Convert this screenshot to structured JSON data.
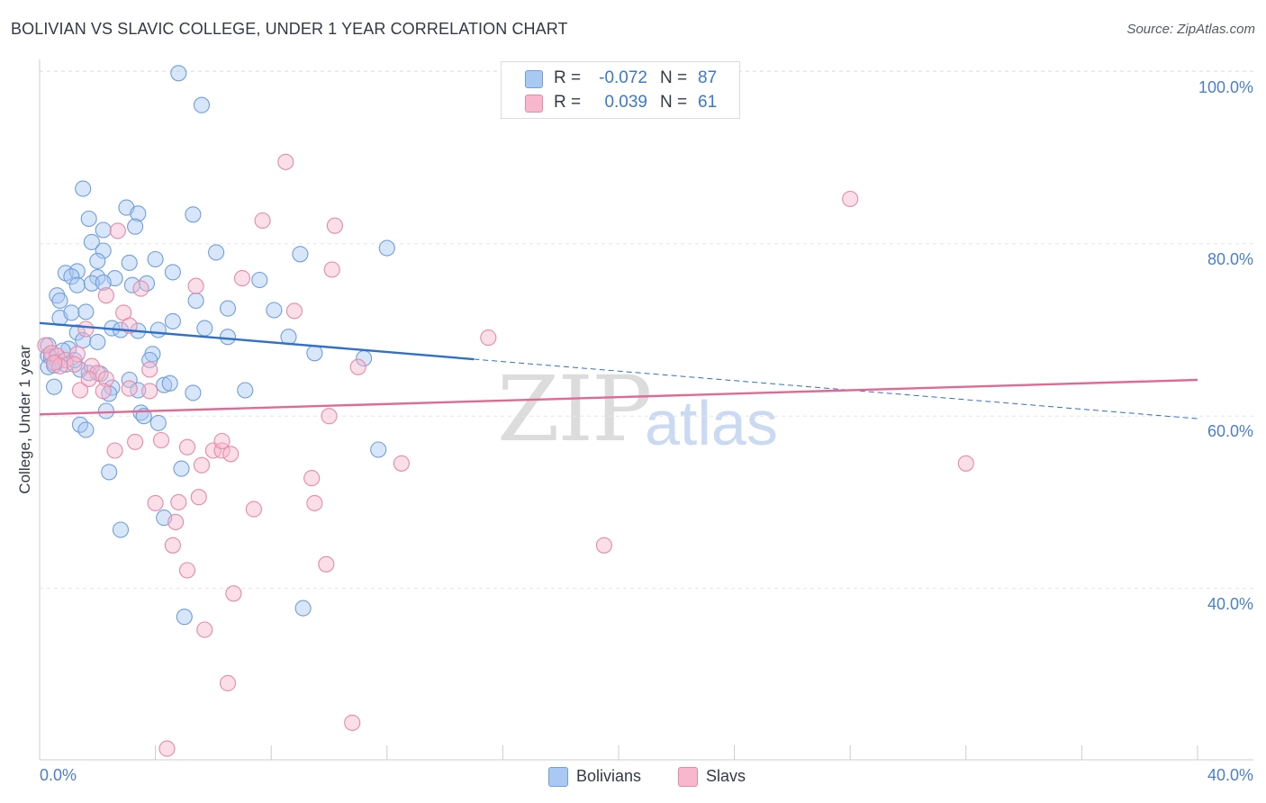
{
  "title": "BOLIVIAN VS SLAVIC COLLEGE, UNDER 1 YEAR CORRELATION CHART",
  "source": "Source: ZipAtlas.com",
  "watermark": {
    "zip": "ZIP",
    "atlas": "atlas"
  },
  "legend": {
    "rows": [
      {
        "r_label": "R =",
        "r_value": "-0.072",
        "n_label": "N =",
        "n_value": "87",
        "color": "#a9c8f2"
      },
      {
        "r_label": "R =",
        "r_value": "0.039",
        "n_label": "N =",
        "n_value": "61",
        "color": "#f7b8cd"
      }
    ]
  },
  "bottom_legend": {
    "bolivians": "Bolivians",
    "slavs": "Slavs"
  },
  "chart_data": {
    "type": "scatter",
    "title": "BOLIVIAN VS SLAVIC COLLEGE, UNDER 1 YEAR CORRELATION CHART",
    "xlabel": "",
    "ylabel": "College, Under 1 year",
    "xlim": [
      0,
      40
    ],
    "ylim": [
      20,
      102
    ],
    "x_tick_labels": [
      "0.0%",
      "40.0%"
    ],
    "y_ticks": [
      40,
      60,
      80,
      100
    ],
    "y_tick_labels": [
      "40.0%",
      "60.0%",
      "80.0%",
      "100.0%"
    ],
    "grid": true,
    "colors": {
      "bolivians_fill": "#a9c8f2",
      "bolivians_stroke": "#6f9fdf",
      "bolivians_line": "#2f6fce",
      "slavs_fill": "#f7b8cd",
      "slavs_stroke": "#e889a8",
      "slavs_line": "#e06a94"
    },
    "series": [
      {
        "name": "Bolivians",
        "trend": {
          "x": [
            0,
            15
          ],
          "y": [
            70.8,
            66.6
          ],
          "dashed_to": [
            40,
            59.7
          ]
        },
        "points": [
          [
            4.8,
            99.8
          ],
          [
            5.6,
            96.1
          ],
          [
            1.5,
            86.4
          ],
          [
            1.7,
            82.9
          ],
          [
            3.0,
            84.2
          ],
          [
            3.4,
            83.5
          ],
          [
            5.3,
            83.4
          ],
          [
            3.3,
            82.0
          ],
          [
            2.2,
            81.6
          ],
          [
            1.8,
            80.2
          ],
          [
            2.2,
            79.2
          ],
          [
            6.1,
            79.0
          ],
          [
            12.0,
            79.5
          ],
          [
            9.0,
            78.8
          ],
          [
            2.0,
            78.0
          ],
          [
            3.1,
            77.8
          ],
          [
            4.0,
            78.2
          ],
          [
            0.9,
            76.6
          ],
          [
            1.3,
            76.8
          ],
          [
            1.1,
            76.2
          ],
          [
            2.0,
            76.1
          ],
          [
            2.6,
            76.0
          ],
          [
            4.6,
            76.7
          ],
          [
            7.6,
            75.8
          ],
          [
            0.6,
            74.0
          ],
          [
            1.3,
            75.2
          ],
          [
            1.8,
            75.4
          ],
          [
            2.2,
            75.5
          ],
          [
            3.2,
            75.2
          ],
          [
            3.7,
            75.4
          ],
          [
            0.7,
            73.4
          ],
          [
            5.4,
            73.4
          ],
          [
            0.7,
            71.4
          ],
          [
            1.1,
            72.0
          ],
          [
            1.6,
            72.1
          ],
          [
            6.5,
            72.5
          ],
          [
            8.1,
            72.3
          ],
          [
            4.6,
            71.0
          ],
          [
            2.5,
            70.2
          ],
          [
            2.8,
            70.0
          ],
          [
            3.4,
            69.9
          ],
          [
            4.1,
            70.0
          ],
          [
            5.7,
            70.2
          ],
          [
            1.3,
            69.7
          ],
          [
            6.5,
            69.2
          ],
          [
            8.6,
            69.2
          ],
          [
            0.3,
            68.2
          ],
          [
            1.5,
            68.8
          ],
          [
            2.0,
            68.6
          ],
          [
            1.0,
            67.8
          ],
          [
            0.3,
            67.0
          ],
          [
            0.4,
            66.8
          ],
          [
            0.6,
            66.3
          ],
          [
            0.9,
            66.0
          ],
          [
            0.3,
            65.7
          ],
          [
            3.9,
            67.2
          ],
          [
            9.5,
            67.3
          ],
          [
            11.2,
            66.7
          ],
          [
            3.8,
            66.5
          ],
          [
            1.7,
            65.0
          ],
          [
            3.1,
            64.2
          ],
          [
            4.3,
            63.6
          ],
          [
            4.5,
            63.8
          ],
          [
            0.5,
            63.4
          ],
          [
            2.5,
            63.3
          ],
          [
            3.4,
            63.0
          ],
          [
            2.4,
            62.6
          ],
          [
            5.3,
            62.7
          ],
          [
            7.1,
            63.0
          ],
          [
            2.3,
            60.6
          ],
          [
            3.5,
            60.4
          ],
          [
            3.6,
            60.0
          ],
          [
            4.1,
            59.2
          ],
          [
            1.4,
            59.0
          ],
          [
            1.6,
            58.4
          ],
          [
            11.7,
            56.1
          ],
          [
            4.9,
            53.9
          ],
          [
            2.4,
            53.5
          ],
          [
            4.3,
            48.2
          ],
          [
            2.8,
            46.8
          ],
          [
            5.0,
            36.7
          ],
          [
            9.1,
            37.7
          ],
          [
            0.5,
            65.9
          ],
          [
            1.4,
            65.4
          ],
          [
            2.1,
            64.9
          ],
          [
            1.2,
            66.5
          ],
          [
            0.8,
            67.6
          ]
        ]
      },
      {
        "name": "Slavs",
        "trend": {
          "x": [
            0,
            40
          ],
          "y": [
            60.2,
            64.2
          ]
        },
        "points": [
          [
            8.5,
            89.5
          ],
          [
            28.0,
            85.2
          ],
          [
            7.7,
            82.7
          ],
          [
            10.2,
            82.1
          ],
          [
            2.7,
            81.5
          ],
          [
            10.1,
            77.0
          ],
          [
            7.0,
            76.0
          ],
          [
            5.4,
            75.1
          ],
          [
            3.5,
            74.8
          ],
          [
            2.3,
            74.0
          ],
          [
            8.8,
            72.2
          ],
          [
            2.9,
            72.0
          ],
          [
            3.1,
            70.5
          ],
          [
            1.6,
            70.1
          ],
          [
            15.5,
            69.1
          ],
          [
            0.2,
            68.2
          ],
          [
            0.4,
            67.3
          ],
          [
            0.6,
            67.0
          ],
          [
            0.9,
            66.5
          ],
          [
            1.3,
            67.2
          ],
          [
            0.7,
            65.8
          ],
          [
            1.2,
            66.0
          ],
          [
            1.8,
            65.8
          ],
          [
            2.0,
            65.0
          ],
          [
            3.8,
            65.4
          ],
          [
            11.0,
            65.7
          ],
          [
            2.3,
            64.3
          ],
          [
            1.4,
            63.0
          ],
          [
            2.2,
            62.9
          ],
          [
            3.1,
            63.2
          ],
          [
            3.8,
            62.9
          ],
          [
            10.0,
            60.0
          ],
          [
            2.6,
            56.0
          ],
          [
            3.3,
            57.0
          ],
          [
            4.2,
            57.2
          ],
          [
            5.1,
            56.4
          ],
          [
            6.0,
            56.0
          ],
          [
            6.3,
            56.0
          ],
          [
            6.6,
            55.6
          ],
          [
            6.3,
            57.1
          ],
          [
            5.6,
            54.3
          ],
          [
            12.5,
            54.5
          ],
          [
            32.0,
            54.5
          ],
          [
            9.4,
            52.8
          ],
          [
            5.5,
            50.6
          ],
          [
            4.0,
            49.9
          ],
          [
            4.8,
            50.0
          ],
          [
            9.5,
            49.9
          ],
          [
            7.4,
            49.2
          ],
          [
            4.7,
            47.7
          ],
          [
            4.6,
            45.0
          ],
          [
            19.5,
            45.0
          ],
          [
            9.9,
            42.8
          ],
          [
            5.1,
            42.1
          ],
          [
            6.7,
            39.4
          ],
          [
            5.7,
            35.2
          ],
          [
            6.5,
            29.0
          ],
          [
            10.8,
            24.4
          ],
          [
            4.4,
            21.4
          ],
          [
            1.7,
            64.3
          ],
          [
            0.5,
            66.2
          ]
        ]
      }
    ]
  }
}
